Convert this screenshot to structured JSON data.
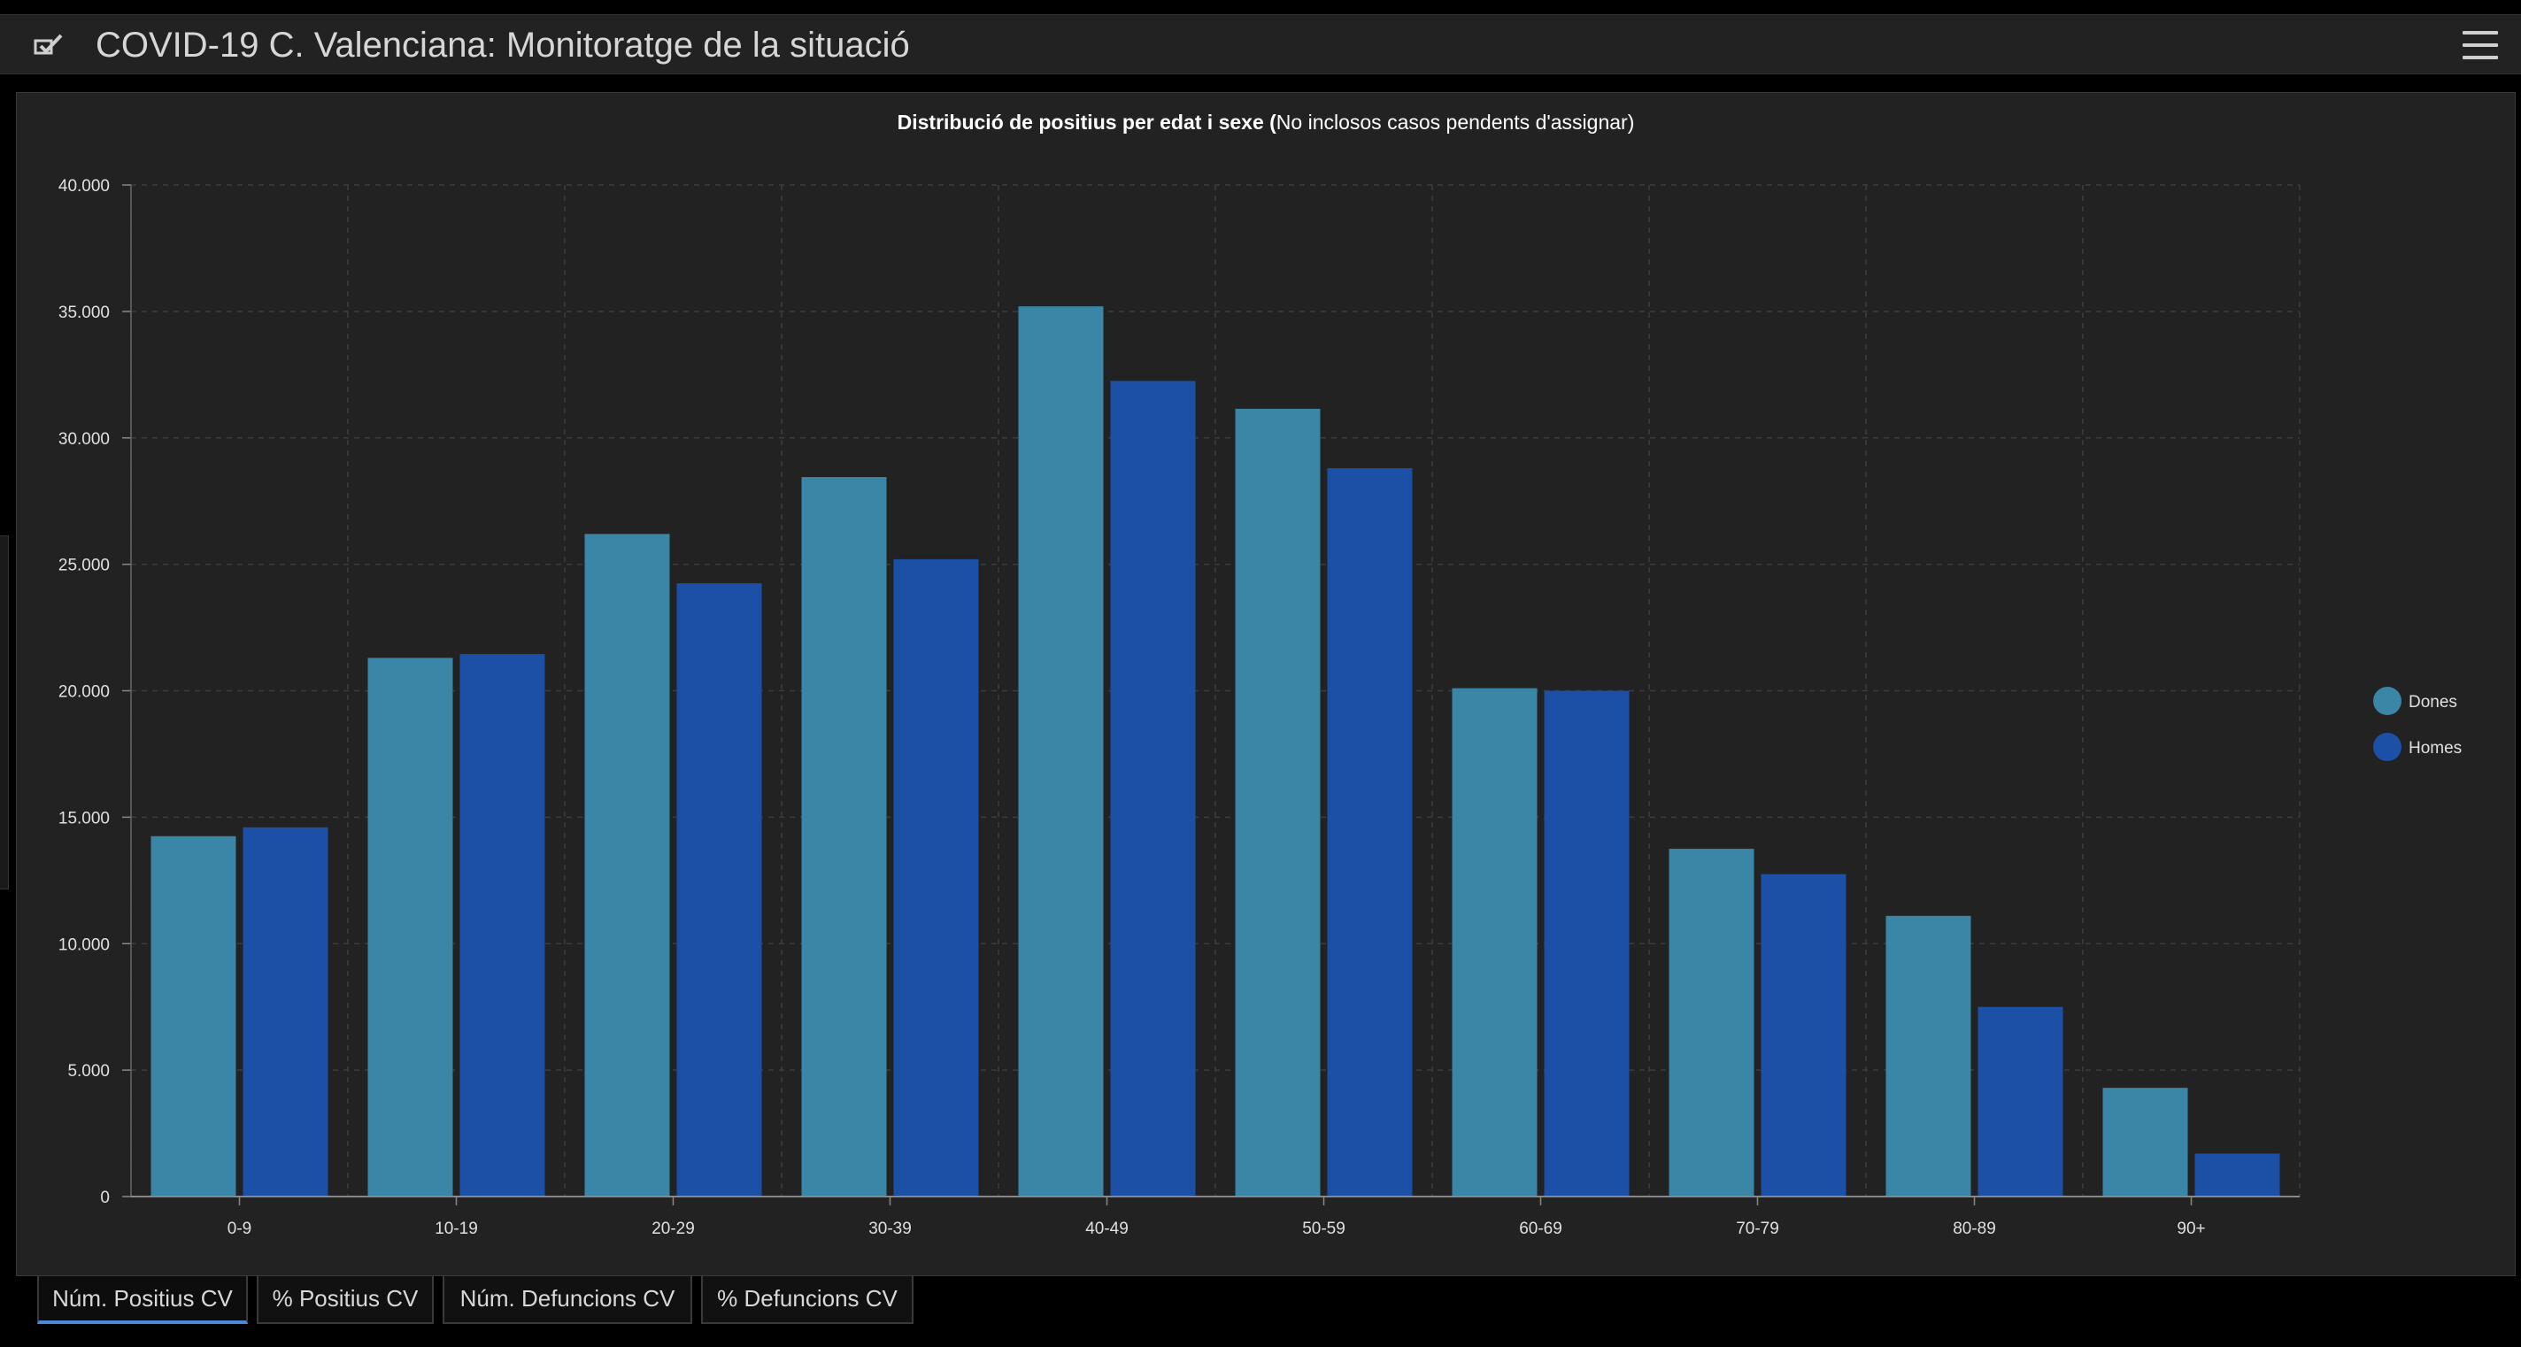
{
  "header": {
    "title": "COVID-19 C. Valenciana: Monitoratge de la situació",
    "app_icon": "checkmark-box-icon",
    "menu_icon": "hamburger-menu-icon"
  },
  "tabs": [
    {
      "label": "Núm. Positius CV",
      "active": true
    },
    {
      "label": "% Positius CV",
      "active": false
    },
    {
      "label": "Núm. Defuncions CV",
      "active": false
    },
    {
      "label": "% Defuncions CV",
      "active": false
    }
  ],
  "colors": {
    "dones": "#3a86a7",
    "homes": "#1c50a6",
    "grid": "#3c3c3c",
    "background": "#222222"
  },
  "chart_data": {
    "type": "bar",
    "title_bold": "Distribució de positius per edat i sexe (",
    "title_rest": "No inclosos casos pendents d'assignar)",
    "xlabel": "",
    "ylabel": "",
    "ylim": [
      0,
      40000
    ],
    "yticks": [
      0,
      5000,
      10000,
      15000,
      20000,
      25000,
      30000,
      35000,
      40000
    ],
    "ytick_labels": [
      "0",
      "5.000",
      "10.000",
      "15.000",
      "20.000",
      "25.000",
      "30.000",
      "35.000",
      "40.000"
    ],
    "categories": [
      "0-9",
      "10-19",
      "20-29",
      "30-39",
      "40-49",
      "50-59",
      "60-69",
      "70-79",
      "80-89",
      "90+"
    ],
    "series": [
      {
        "name": "Dones",
        "values": [
          14250,
          21300,
          26200,
          28450,
          35200,
          31150,
          20100,
          13750,
          11100,
          4300
        ]
      },
      {
        "name": "Homes",
        "values": [
          14600,
          21450,
          24250,
          25200,
          32250,
          28800,
          20000,
          12750,
          7500,
          1700
        ]
      }
    ],
    "legend_position": "right",
    "grid": true
  }
}
